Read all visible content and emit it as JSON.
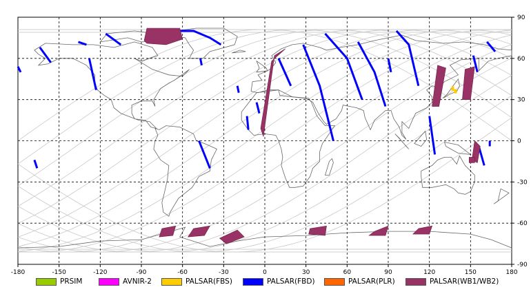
{
  "map": {
    "x_ticks": [
      "-180",
      "-150",
      "-120",
      "-90",
      "-60",
      "-30",
      "0",
      "30",
      "60",
      "90",
      "120",
      "150",
      "180"
    ],
    "x_tick_values": [
      -180,
      -150,
      -120,
      -90,
      -60,
      -30,
      0,
      30,
      60,
      90,
      120,
      150,
      180
    ],
    "y_ticks": [
      "90",
      "60",
      "30",
      "0",
      "-30",
      "-60",
      "-90"
    ],
    "y_tick_values": [
      90,
      60,
      30,
      0,
      -30,
      -60,
      -90
    ],
    "lon_range": [
      -180,
      180
    ],
    "lat_range": [
      -90,
      90
    ],
    "grid": true,
    "grid_color": "#000000",
    "orbit_track_color": "#c8c8c8",
    "coastline_color": "#666666"
  },
  "legend": {
    "items": [
      {
        "label": "PRSIM",
        "color": "#99cc00"
      },
      {
        "label": "AVNIR-2",
        "color": "#ff00ff"
      },
      {
        "label": "PALSAR(FBS)",
        "color": "#ffcc00"
      },
      {
        "label": "PALSAR(FBD)",
        "color": "#0000ff"
      },
      {
        "label": "PALSAR(PLR)",
        "color": "#ff6600"
      },
      {
        "label": "PALSAR(WB1/WB2)",
        "color": "#993366"
      }
    ]
  },
  "chart_data": {
    "type": "map",
    "xlim": [
      -180,
      180
    ],
    "ylim": [
      -90,
      90
    ],
    "series": [
      {
        "name": "PALSAR(FBD)",
        "color": "#0000ff",
        "segments": [
          [
            [
              -164,
              68
            ],
            [
              -156,
              57
            ]
          ],
          [
            [
              -136,
              72
            ],
            [
              -130,
              70
            ]
          ],
          [
            [
              -128,
              60
            ],
            [
              -123,
              37
            ]
          ],
          [
            [
              -116,
              78
            ],
            [
              -105,
              70
            ]
          ],
          [
            [
              -63,
              80
            ],
            [
              -52,
              80
            ],
            [
              -40,
              75
            ],
            [
              -32,
              70
            ]
          ],
          [
            [
              -180,
              54
            ],
            [
              -178,
              50
            ]
          ],
          [
            [
              -47,
              60
            ],
            [
              -46,
              55
            ]
          ],
          [
            [
              -20,
              40
            ],
            [
              -19,
              35
            ]
          ],
          [
            [
              -13,
              18
            ],
            [
              -12,
              8
            ]
          ],
          [
            [
              -6,
              28
            ],
            [
              -4,
              20
            ]
          ],
          [
            [
              10,
              60
            ],
            [
              19,
              40
            ]
          ],
          [
            [
              28,
              70
            ],
            [
              40,
              40
            ],
            [
              50,
              0
            ]
          ],
          [
            [
              68,
              72
            ],
            [
              80,
              50
            ],
            [
              88,
              25
            ]
          ],
          [
            [
              44,
              78
            ],
            [
              60,
              60
            ],
            [
              71,
              30
            ]
          ],
          [
            [
              96,
              80
            ],
            [
              105,
              70
            ],
            [
              112,
              40
            ]
          ],
          [
            [
              90,
              60
            ],
            [
              92,
              50
            ]
          ],
          [
            [
              120,
              18
            ],
            [
              124,
              -10
            ]
          ],
          [
            [
              162,
              72
            ],
            [
              168,
              65
            ]
          ],
          [
            [
              152,
              62
            ],
            [
              155,
              50
            ]
          ],
          [
            [
              -48,
              0
            ],
            [
              -40,
              -20
            ]
          ],
          [
            [
              -168,
              -14
            ],
            [
              -166,
              -20
            ]
          ],
          [
            [
              156,
              -4
            ],
            [
              160,
              -18
            ]
          ],
          [
            [
              164,
              0
            ],
            [
              164,
              -4
            ]
          ]
        ]
      },
      {
        "name": "PALSAR(WB1/WB2)",
        "color": "#993366",
        "polygons": [
          [
            [
              -88,
              73
            ],
            [
              -86,
              82
            ],
            [
              -62,
              82
            ],
            [
              -60,
              74
            ],
            [
              -72,
              70
            ],
            [
              -86,
              71
            ]
          ],
          [
            [
              -3,
              9
            ],
            [
              5,
              58
            ],
            [
              15,
              67
            ],
            [
              7,
              62
            ],
            [
              -1,
              3
            ]
          ],
          [
            [
              126,
              55
            ],
            [
              132,
              53
            ],
            [
              127,
              25
            ],
            [
              122,
              25
            ]
          ],
          [
            [
              146,
              52
            ],
            [
              153,
              54
            ],
            [
              150,
              30
            ],
            [
              144,
              30
            ]
          ],
          [
            [
              153,
              0
            ],
            [
              157,
              -4
            ],
            [
              155,
              -16
            ],
            [
              151,
              -14
            ]
          ],
          [
            [
              -75,
              -64
            ],
            [
              -65,
              -62
            ],
            [
              -67,
              -69
            ],
            [
              -77,
              -70
            ]
          ],
          [
            [
              -52,
              -64
            ],
            [
              -40,
              -62
            ],
            [
              -44,
              -69
            ],
            [
              -56,
              -70
            ]
          ],
          [
            [
              -33,
              -71
            ],
            [
              -20,
              -65
            ],
            [
              -15,
              -70
            ],
            [
              -28,
              -75
            ]
          ],
          [
            [
              33,
              -64
            ],
            [
              45,
              -62
            ],
            [
              44,
              -69
            ],
            [
              32,
              -68
            ]
          ],
          [
            [
              80,
              -66
            ],
            [
              90,
              -62
            ],
            [
              88,
              -69
            ],
            [
              76,
              -69
            ]
          ],
          [
            [
              112,
              -64
            ],
            [
              122,
              -62
            ],
            [
              120,
              -68
            ],
            [
              108,
              -68
            ]
          ],
          [
            [
              149,
              -12
            ],
            [
              153,
              -12
            ],
            [
              153,
              -16
            ],
            [
              149,
              -16
            ]
          ]
        ]
      },
      {
        "name": "PALSAR(FBS)",
        "color": "#ffcc00",
        "points": [
          [
            137,
            38
          ],
          [
            139,
            36
          ]
        ]
      }
    ]
  }
}
